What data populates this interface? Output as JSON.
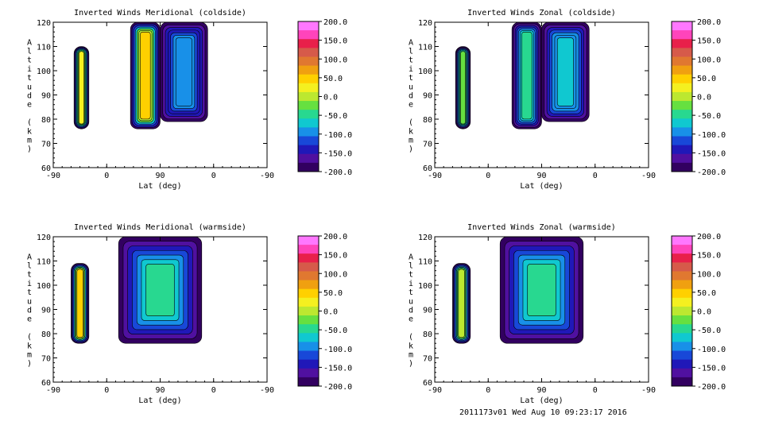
{
  "chart_data": [
    {
      "type": "heatmap",
      "title": "Inverted Winds Meridional (coldside)",
      "xlabel": "Lat (deg)",
      "ylabel": "Altitude (km)",
      "x_ticks": [
        "-90",
        "0",
        "90",
        "0",
        "-90"
      ],
      "y_ticks": [
        60,
        70,
        80,
        90,
        100,
        110,
        120
      ],
      "ylim": [
        60,
        120
      ],
      "blocks": [
        {
          "lat_range": [
            -55,
            -30
          ],
          "alt_range": [
            76,
            110
          ],
          "center_level": 20
        },
        {
          "lat_range": [
            40,
            90
          ],
          "alt_range": [
            76,
            120
          ],
          "center_level": 40
        },
        {
          "lat_range": [
            90,
            10
          ],
          "alt_range": [
            79,
            120
          ],
          "center_level": -90
        }
      ]
    },
    {
      "type": "heatmap",
      "title": "Inverted Winds Zonal (coldside)",
      "xlabel": "Lat (deg)",
      "ylabel": "Altitude (km)",
      "x_ticks": [
        "-90",
        "0",
        "90",
        "0",
        "-90"
      ],
      "y_ticks": [
        60,
        70,
        80,
        90,
        100,
        110,
        120
      ],
      "ylim": [
        60,
        120
      ],
      "blocks": [
        {
          "lat_range": [
            -55,
            -30
          ],
          "alt_range": [
            76,
            110
          ],
          "center_level": -30
        },
        {
          "lat_range": [
            40,
            90
          ],
          "alt_range": [
            76,
            120
          ],
          "center_level": -40
        },
        {
          "lat_range": [
            90,
            10
          ],
          "alt_range": [
            79,
            120
          ],
          "center_level": -70
        }
      ]
    },
    {
      "type": "heatmap",
      "title": "Inverted Winds Meridional (warmside)",
      "xlabel": "Lat (deg)",
      "ylabel": "Altitude (km)",
      "x_ticks": [
        "-90",
        "0",
        "90",
        "0",
        "-90"
      ],
      "y_ticks": [
        60,
        70,
        80,
        90,
        100,
        110,
        120
      ],
      "ylim": [
        60,
        120
      ],
      "blocks": [
        {
          "lat_range": [
            -60,
            -30
          ],
          "alt_range": [
            76,
            109
          ],
          "center_level": 40
        },
        {
          "lat_range": [
            30,
            60
          ],
          "alt_range": [
            77,
            120
          ],
          "center_level": -20
        },
        {
          "lat_range": [
            160,
            20
          ],
          "alt_range": [
            76,
            120
          ],
          "center_level": -40
        }
      ]
    },
    {
      "type": "heatmap",
      "title": "Inverted Winds Zonal (warmside)",
      "xlabel": "Lat (deg)",
      "ylabel": "Altitude (km)",
      "x_ticks": [
        "-90",
        "0",
        "90",
        "0",
        "-90"
      ],
      "y_ticks": [
        60,
        70,
        80,
        90,
        100,
        110,
        120
      ],
      "ylim": [
        60,
        120
      ],
      "blocks": [
        {
          "lat_range": [
            -60,
            -30
          ],
          "alt_range": [
            76,
            109
          ],
          "center_level": 10
        },
        {
          "lat_range": [
            30,
            60
          ],
          "alt_range": [
            77,
            120
          ],
          "center_level": -10
        },
        {
          "lat_range": [
            160,
            20
          ],
          "alt_range": [
            76,
            120
          ],
          "center_level": -40
        }
      ]
    }
  ],
  "colorbar": {
    "labels": [
      "200.0",
      "150.0",
      "100.0",
      "50.0",
      "0.0",
      "-50.0",
      "-100.0",
      "-150.0",
      "-200.0"
    ],
    "range": [
      -200,
      200
    ],
    "colors": [
      "#ff77ff",
      "#ff44bb",
      "#e8204a",
      "#d65a4a",
      "#e07830",
      "#f0a010",
      "#ffd000",
      "#f4f020",
      "#bce830",
      "#66e040",
      "#28d890",
      "#10c8d0",
      "#1890e8",
      "#1848d8",
      "#2018b8",
      "#5010a0",
      "#320060"
    ]
  },
  "footer": "2011173v01 Wed Aug 10 09:23:17 2016"
}
